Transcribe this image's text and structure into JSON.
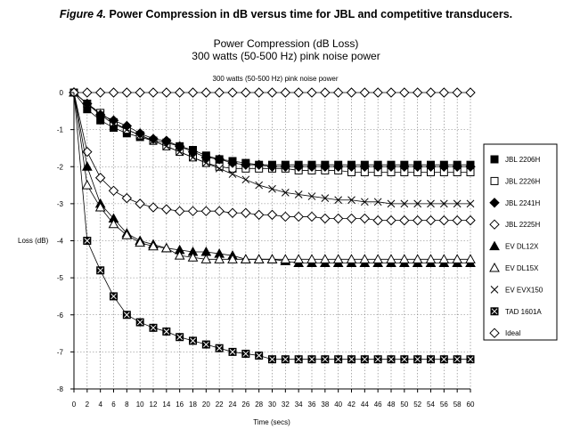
{
  "figure_caption": {
    "number": "Figure 4.",
    "text": "Power Compression in dB versus time for JBL and competitive transducers."
  },
  "chart_data": {
    "type": "line",
    "title": "Power Compression (dB Loss)",
    "subtitle": "300 watts (50-500 Hz) pink noise power",
    "inner_title": "300 watts (50-500 Hz) pink noise power",
    "xlabel": "Time (secs)",
    "ylabel": "Loss (dB)",
    "xlim": [
      0,
      60
    ],
    "ylim": [
      -8,
      0
    ],
    "x_ticks": [
      0,
      2,
      4,
      6,
      8,
      10,
      12,
      14,
      16,
      18,
      20,
      22,
      24,
      26,
      28,
      30,
      32,
      34,
      36,
      38,
      40,
      42,
      44,
      46,
      48,
      50,
      52,
      54,
      56,
      58,
      60
    ],
    "y_ticks": [
      0,
      -1,
      -2,
      -3,
      -4,
      -5,
      -6,
      -7,
      -8
    ],
    "grid": true,
    "legend_position": "right",
    "x": [
      0,
      2,
      4,
      6,
      8,
      10,
      12,
      14,
      16,
      18,
      20,
      22,
      24,
      26,
      28,
      30,
      32,
      34,
      36,
      38,
      40,
      42,
      44,
      46,
      48,
      50,
      52,
      54,
      56,
      58,
      60
    ],
    "series": [
      {
        "name": "JBL 2206H",
        "marker": "square-filled",
        "values": [
          0,
          -0.45,
          -0.75,
          -0.95,
          -1.1,
          -1.2,
          -1.3,
          -1.35,
          -1.45,
          -1.55,
          -1.7,
          -1.8,
          -1.85,
          -1.9,
          -1.95,
          -1.95,
          -1.95,
          -1.95,
          -1.95,
          -1.95,
          -1.95,
          -1.95,
          -1.95,
          -1.95,
          -1.95,
          -1.95,
          -1.95,
          -1.95,
          -1.95,
          -1.95,
          -1.95
        ]
      },
      {
        "name": "JBL 2226H",
        "marker": "square-open",
        "values": [
          0,
          -0.3,
          -0.55,
          -0.8,
          -1.0,
          -1.15,
          -1.3,
          -1.45,
          -1.6,
          -1.75,
          -1.9,
          -2.0,
          -2.05,
          -2.05,
          -2.05,
          -2.05,
          -2.05,
          -2.1,
          -2.1,
          -2.1,
          -2.1,
          -2.15,
          -2.15,
          -2.15,
          -2.15,
          -2.15,
          -2.15,
          -2.15,
          -2.15,
          -2.15,
          -2.15
        ]
      },
      {
        "name": "JBL 2241H",
        "marker": "diamond-filled",
        "values": [
          0,
          -0.3,
          -0.6,
          -0.75,
          -0.9,
          -1.1,
          -1.25,
          -1.3,
          -1.45,
          -1.6,
          -1.75,
          -1.8,
          -1.9,
          -1.95,
          -1.95,
          -2.0,
          -2.0,
          -2.0,
          -2.0,
          -2.0,
          -2.0,
          -2.0,
          -2.0,
          -2.0,
          -2.0,
          -2.0,
          -2.0,
          -2.0,
          -2.0,
          -2.0,
          -2.0
        ]
      },
      {
        "name": "JBL 2225H",
        "marker": "diamond-open",
        "values": [
          0,
          -1.6,
          -2.3,
          -2.65,
          -2.85,
          -3.0,
          -3.1,
          -3.15,
          -3.2,
          -3.2,
          -3.2,
          -3.2,
          -3.25,
          -3.25,
          -3.3,
          -3.3,
          -3.35,
          -3.35,
          -3.35,
          -3.4,
          -3.4,
          -3.4,
          -3.4,
          -3.45,
          -3.45,
          -3.45,
          -3.45,
          -3.45,
          -3.45,
          -3.45,
          -3.45
        ]
      },
      {
        "name": "EV DL12X",
        "marker": "triangle-filled",
        "values": [
          0,
          -2.0,
          -3.0,
          -3.4,
          -3.8,
          -4.0,
          -4.1,
          -4.2,
          -4.25,
          -4.3,
          -4.3,
          -4.35,
          -4.4,
          -4.5,
          -4.5,
          -4.5,
          -4.55,
          -4.6,
          -4.6,
          -4.6,
          -4.6,
          -4.6,
          -4.6,
          -4.6,
          -4.6,
          -4.6,
          -4.6,
          -4.6,
          -4.6,
          -4.6,
          -4.6
        ]
      },
      {
        "name": "EV DL15X",
        "marker": "triangle-open",
        "values": [
          0,
          -2.5,
          -3.1,
          -3.55,
          -3.85,
          -4.05,
          -4.15,
          -4.2,
          -4.4,
          -4.45,
          -4.5,
          -4.5,
          -4.5,
          -4.5,
          -4.5,
          -4.5,
          -4.5,
          -4.5,
          -4.5,
          -4.5,
          -4.5,
          -4.5,
          -4.5,
          -4.5,
          -4.5,
          -4.5,
          -4.5,
          -4.5,
          -4.5,
          -4.5,
          -4.5
        ]
      },
      {
        "name": "EV EVX150",
        "marker": "x",
        "values": [
          0,
          -0.3,
          -0.6,
          -0.85,
          -1.0,
          -1.15,
          -1.3,
          -1.45,
          -1.6,
          -1.75,
          -1.9,
          -2.05,
          -2.2,
          -2.35,
          -2.5,
          -2.6,
          -2.7,
          -2.75,
          -2.8,
          -2.85,
          -2.9,
          -2.9,
          -2.95,
          -2.95,
          -3.0,
          -3.0,
          -3.0,
          -3.0,
          -3.0,
          -3.0,
          -3.0
        ]
      },
      {
        "name": "TAD 1601A",
        "marker": "square-x",
        "values": [
          0,
          -4.0,
          -4.8,
          -5.5,
          -6.0,
          -6.2,
          -6.35,
          -6.45,
          -6.6,
          -6.7,
          -6.8,
          -6.9,
          -7.0,
          -7.05,
          -7.1,
          -7.2,
          -7.2,
          -7.2,
          -7.2,
          -7.2,
          -7.2,
          -7.2,
          -7.2,
          -7.2,
          -7.2,
          -7.2,
          -7.2,
          -7.2,
          -7.2,
          -7.2,
          -7.2
        ]
      },
      {
        "name": "Ideal",
        "marker": "diamond-open",
        "values": [
          0,
          0,
          0,
          0,
          0,
          0,
          0,
          0,
          0,
          0,
          0,
          0,
          0,
          0,
          0,
          0,
          0,
          0,
          0,
          0,
          0,
          0,
          0,
          0,
          0,
          0,
          0,
          0,
          0,
          0,
          0
        ]
      }
    ]
  }
}
